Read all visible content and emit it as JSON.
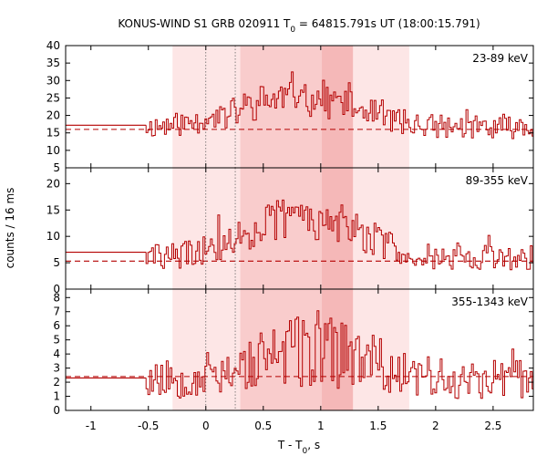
{
  "chart_data": {
    "type": "line",
    "title_prefix": "KONUS-WIND S1 GRB 020911 T",
    "title_sub": "0",
    "title_suffix": " = 64815.791s UT (18:00:15.791)",
    "xlabel_prefix": "T - T",
    "xlabel_sub": "0",
    "xlabel_suffix": ", s",
    "ylabel": "counts / 16 ms",
    "xlim": [
      -1.22,
      2.85
    ],
    "xticks": [
      -1,
      -0.5,
      0,
      0.5,
      1,
      1.5,
      2,
      2.5
    ],
    "xtick_labels": [
      "-1",
      "-0.5",
      "0",
      "0.5",
      "1",
      "1.5",
      "2",
      "2.5"
    ],
    "bin_width_s": 0.016,
    "trigger_start": -1.22,
    "shaded_intervals": [
      {
        "start": -0.29,
        "end": 1.77,
        "level": "light"
      },
      {
        "start": 0.3,
        "end": 1.28,
        "level": "medium"
      },
      {
        "start": 1.01,
        "end": 1.28,
        "level": "dark"
      }
    ],
    "vertical_markers": [
      0.0,
      0.256
    ],
    "colors": {
      "series": "#b40000",
      "shade_light": "#fde6e6",
      "shade_medium": "#f9cccc",
      "shade_dark": "#f5b8b8",
      "marker": "#555555"
    },
    "panels": [
      {
        "label": "23-89 keV",
        "ylim": [
          5,
          40
        ],
        "yticks": [
          5,
          10,
          15,
          20,
          25,
          30,
          35,
          40
        ],
        "background_rate": 16.0,
        "pre_trigger_level": 17.2,
        "profile_seed": 11,
        "profile": {
          "pre_level": 17.2,
          "post_base": 16.5,
          "peak_add": 9,
          "peak_center": 0.8,
          "peak_width": 0.7,
          "noise": 9,
          "floor": 10
        }
      },
      {
        "label": "89-355 keV",
        "ylim": [
          0,
          23
        ],
        "yticks": [
          0,
          5,
          10,
          15,
          20
        ],
        "background_rate": 5.3,
        "pre_trigger_level": 7.0,
        "profile_seed": 29,
        "profile": {
          "pre_level": 7.0,
          "post_base": 6.0,
          "peak_add": 8,
          "peak_center": 0.85,
          "peak_width": 0.65,
          "noise": 7,
          "floor": 2
        }
      },
      {
        "label": "355-1343 keV",
        "ylim": [
          0,
          8.6
        ],
        "yticks": [
          0,
          1,
          2,
          3,
          4,
          5,
          6,
          7,
          8
        ],
        "background_rate": 2.4,
        "pre_trigger_level": 2.3,
        "profile_seed": 53,
        "profile": {
          "pre_level": 2.3,
          "post_base": 2.2,
          "peak_add": 2.0,
          "peak_center": 0.9,
          "peak_width": 0.7,
          "noise": 4,
          "floor": 0
        }
      }
    ]
  }
}
